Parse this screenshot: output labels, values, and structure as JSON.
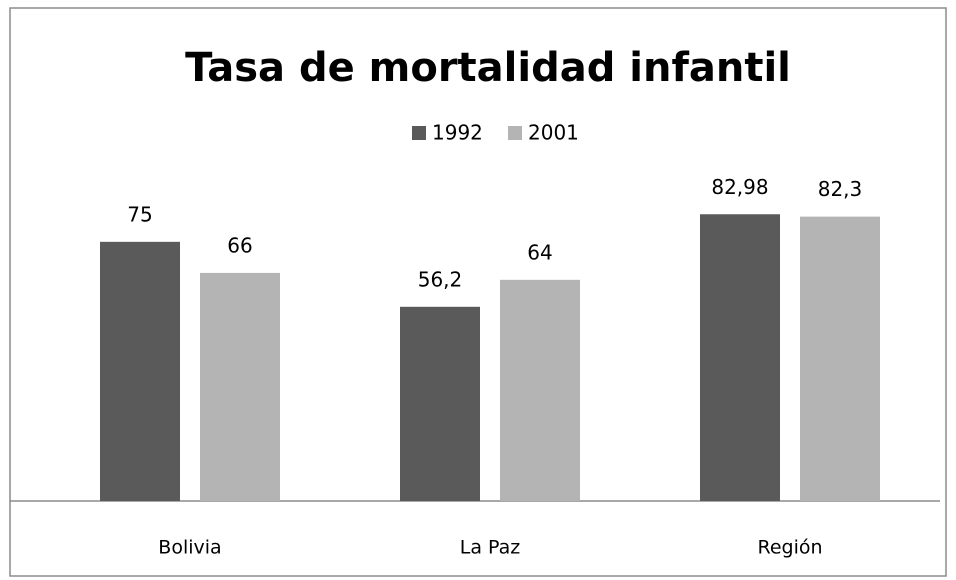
{
  "chart_data": {
    "type": "bar",
    "title": "Tasa de mortalidad infantil",
    "categories": [
      "Bolivia",
      "La Paz",
      "Región"
    ],
    "series": [
      {
        "name": "1992",
        "color": "#5a5a5a",
        "values": [
          75,
          56.2,
          82.98
        ],
        "value_labels": [
          "75",
          "56,2",
          "82,98"
        ]
      },
      {
        "name": "2001",
        "color": "#b4b4b4",
        "values": [
          66,
          64,
          82.3
        ],
        "value_labels": [
          "66",
          "64",
          "82,3"
        ]
      }
    ],
    "ylim": [
      0,
      90
    ],
    "legend": "top"
  }
}
